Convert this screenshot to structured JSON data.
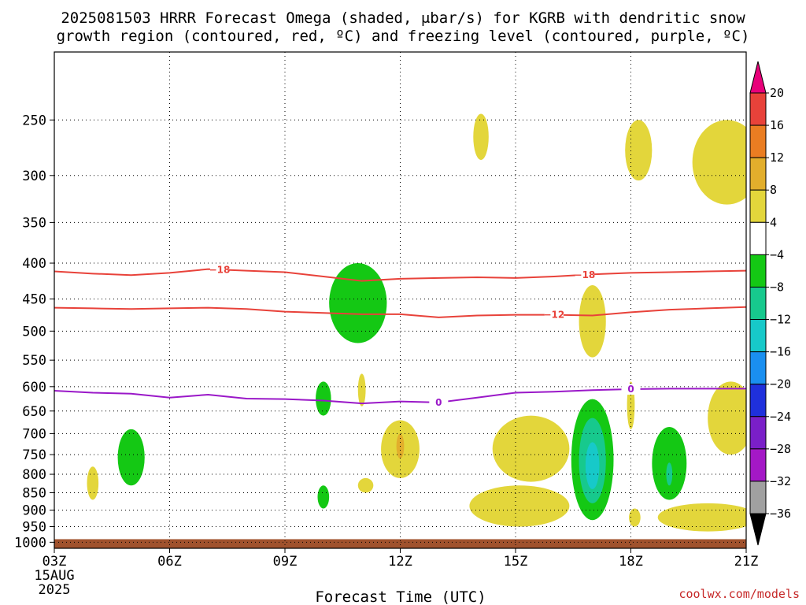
{
  "title_lines": [
    "2025081503 HRRR Forecast Omega (shaded, μbar/s) for KGRB with dendritic snow",
    "growth region (contoured, red, ºC) and freezing level (contoured, purple, ºC)"
  ],
  "credit": "coolwx.com/models",
  "chart_data": {
    "type": "heatmap",
    "title": "2025081503 HRRR Forecast Omega (shaded, μbar/s) for KGRB with dendritic snow growth region (contoured, red, ºC) and freezing level (contoured, purple, ºC)",
    "xlabel": "Forecast Time (UTC)",
    "ylabel": "",
    "x_ticks": [
      {
        "value": 3,
        "label": "03Z",
        "date_line1": "15AUG",
        "date_line2": "2025"
      },
      {
        "value": 6,
        "label": "06Z"
      },
      {
        "value": 9,
        "label": "09Z"
      },
      {
        "value": 12,
        "label": "12Z"
      },
      {
        "value": 15,
        "label": "15Z"
      },
      {
        "value": 18,
        "label": "18Z"
      },
      {
        "value": 21,
        "label": "21Z"
      }
    ],
    "xlim": [
      3,
      21
    ],
    "y_axis": "pressure (log, inverted)",
    "y_ticks": [
      250,
      300,
      350,
      400,
      450,
      500,
      550,
      600,
      650,
      700,
      750,
      800,
      850,
      900,
      950,
      1000
    ],
    "ylim": [
      200,
      1020
    ],
    "grid": true,
    "colorbar": {
      "labels": [
        "20",
        "16",
        "12",
        "8",
        "4",
        "−4",
        "−8",
        "−12",
        "−16",
        "−20",
        "−24",
        "−28",
        "−32",
        "−36"
      ],
      "colors": [
        "#e8007a",
        "#e8423a",
        "#ea7d22",
        "#e2ae2c",
        "#e3d63b",
        "#ffffff",
        "#14c814",
        "#17c98d",
        "#17c9c9",
        "#1a8ff0",
        "#1f30dc",
        "#7a1fc8",
        "#a418c6",
        "#a0a0a0",
        "#000000"
      ]
    },
    "omega_regions": [
      {
        "sign": "up",
        "class": "-4 to -8",
        "t_center": 5.0,
        "p_center": 760,
        "t_halfwidth": 0.35,
        "p_top": 690,
        "p_bottom": 830
      },
      {
        "sign": "up",
        "class": "-4 to -8",
        "t_center": 10.9,
        "p_center": 460,
        "t_halfwidth": 0.75,
        "p_top": 400,
        "p_bottom": 520
      },
      {
        "sign": "up",
        "class": "-4 to -8",
        "t_center": 10.0,
        "p_center": 625,
        "t_halfwidth": 0.2,
        "p_top": 590,
        "p_bottom": 660
      },
      {
        "sign": "up",
        "class": "-4 to -8",
        "t_center": 10.0,
        "p_center": 860,
        "t_halfwidth": 0.15,
        "p_top": 830,
        "p_bottom": 895
      },
      {
        "sign": "up",
        "class": "-4 to -8",
        "t_center": 17.0,
        "p_center": 760,
        "t_halfwidth": 0.55,
        "p_top": 625,
        "p_bottom": 930
      },
      {
        "sign": "up",
        "class": "-8 to -12",
        "t_center": 17.0,
        "p_center": 760,
        "t_halfwidth": 0.35,
        "p_top": 665,
        "p_bottom": 880
      },
      {
        "sign": "up",
        "class": "-12 to -16",
        "t_center": 17.0,
        "p_center": 780,
        "t_halfwidth": 0.18,
        "p_top": 720,
        "p_bottom": 840
      },
      {
        "sign": "up",
        "class": "-4 to -8",
        "t_center": 19.0,
        "p_center": 770,
        "t_halfwidth": 0.45,
        "p_top": 685,
        "p_bottom": 870
      },
      {
        "sign": "up",
        "class": "-8 to -12",
        "t_center": 19.0,
        "p_center": 800,
        "t_halfwidth": 0.08,
        "p_top": 770,
        "p_bottom": 830
      },
      {
        "sign": "down",
        "class": "4 to 8",
        "t_center": 4.0,
        "p_center": 830,
        "t_halfwidth": 0.15,
        "p_top": 780,
        "p_bottom": 870
      },
      {
        "sign": "down",
        "class": "4 to 8",
        "t_center": 11.0,
        "p_center": 610,
        "t_halfwidth": 0.1,
        "p_top": 575,
        "p_bottom": 640
      },
      {
        "sign": "down",
        "class": "4 to 8",
        "t_center": 11.1,
        "p_center": 830,
        "t_halfwidth": 0.2,
        "p_top": 810,
        "p_bottom": 850
      },
      {
        "sign": "down",
        "class": "4 to 8",
        "t_center": 12.0,
        "p_center": 745,
        "t_halfwidth": 0.5,
        "p_top": 670,
        "p_bottom": 810
      },
      {
        "sign": "down",
        "class": "8 to 12",
        "t_center": 12.0,
        "p_center": 735,
        "t_halfwidth": 0.1,
        "p_top": 700,
        "p_bottom": 760
      },
      {
        "sign": "down",
        "class": "4 to 8",
        "t_center": 14.1,
        "p_center": 265,
        "t_halfwidth": 0.2,
        "p_top": 245,
        "p_bottom": 285
      },
      {
        "sign": "down",
        "class": "4 to 8",
        "t_center": 17.0,
        "p_center": 485,
        "t_halfwidth": 0.35,
        "p_top": 430,
        "p_bottom": 545
      },
      {
        "sign": "down",
        "class": "4 to 8",
        "t_center": 18.2,
        "p_center": 275,
        "t_halfwidth": 0.35,
        "p_top": 250,
        "p_bottom": 305
      },
      {
        "sign": "down",
        "class": "4 to 8",
        "t_center": 18.0,
        "p_center": 640,
        "t_halfwidth": 0.1,
        "p_top": 590,
        "p_bottom": 690
      },
      {
        "sign": "down",
        "class": "4 to 8",
        "t_center": 18.1,
        "p_center": 920,
        "t_halfwidth": 0.15,
        "p_top": 895,
        "p_bottom": 950
      },
      {
        "sign": "down",
        "class": "4 to 8",
        "t_center": 20.5,
        "p_center": 290,
        "t_halfwidth": 0.9,
        "p_top": 250,
        "p_bottom": 330
      },
      {
        "sign": "down",
        "class": "4 to 8",
        "t_center": 20.6,
        "p_center": 660,
        "t_halfwidth": 0.6,
        "p_top": 590,
        "p_bottom": 750
      },
      {
        "sign": "down",
        "class": "4 to 8",
        "t_center": 20.0,
        "p_center": 930,
        "t_halfwidth": 1.3,
        "p_top": 880,
        "p_bottom": 965
      },
      {
        "sign": "down",
        "class": "4 to 8",
        "t_center": 15.4,
        "p_center": 740,
        "t_halfwidth": 1.0,
        "p_top": 660,
        "p_bottom": 820
      },
      {
        "sign": "down",
        "class": "4 to 8",
        "t_center": 15.1,
        "p_center": 890,
        "t_halfwidth": 1.3,
        "p_top": 830,
        "p_bottom": 950
      }
    ],
    "series": [
      {
        "name": "-18",
        "kind": "temperature contour (ºC)",
        "color": "#e8423a",
        "t": [
          3,
          4,
          5,
          6,
          7,
          8,
          9,
          10,
          11,
          12,
          13,
          14,
          15,
          16,
          17,
          18,
          19,
          20,
          21
        ],
        "p": [
          411,
          414,
          416,
          413,
          408,
          410,
          412,
          418,
          424,
          421,
          420,
          419,
          420,
          418,
          415,
          413,
          412,
          411,
          410
        ],
        "label_at_t": [
          7.3,
          16.8
        ]
      },
      {
        "name": "-12",
        "kind": "temperature contour (ºC)",
        "color": "#e8423a",
        "t": [
          3,
          4,
          5,
          6,
          7,
          8,
          9,
          10,
          11,
          12,
          13,
          14,
          15,
          16,
          17,
          18,
          19,
          20,
          21
        ],
        "p": [
          463,
          464,
          465,
          464,
          463,
          465,
          469,
          471,
          473,
          473,
          478,
          475,
          474,
          474,
          475,
          470,
          466,
          464,
          462
        ],
        "label_at_t": [
          16.0
        ]
      },
      {
        "name": "0",
        "kind": "freezing level contour (ºC)",
        "color": "#9a18c8",
        "t": [
          3,
          4,
          5,
          6,
          7,
          8,
          9,
          10,
          11,
          12,
          13,
          14,
          15,
          16,
          17,
          18,
          19,
          20,
          21
        ],
        "p": [
          608,
          612,
          614,
          622,
          616,
          624,
          625,
          628,
          634,
          630,
          632,
          622,
          612,
          610,
          607,
          605,
          604,
          604,
          604
        ],
        "label_at_t": [
          13.0,
          18.0
        ]
      }
    ],
    "surface": {
      "color": "#a0522d",
      "p_top": 990
    }
  }
}
